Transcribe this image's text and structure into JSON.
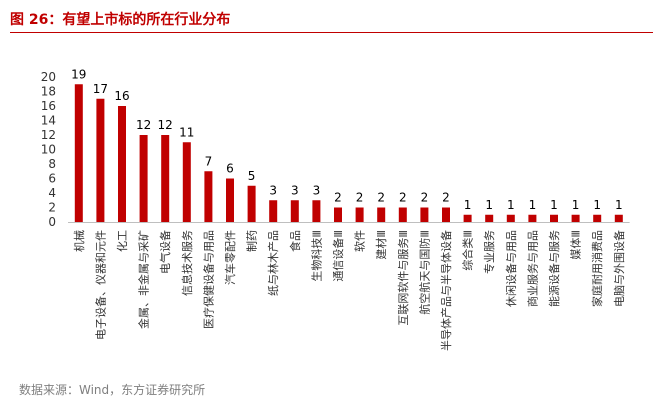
{
  "header": {
    "title": "图 26：有望上市标的所在行业分布"
  },
  "footer": {
    "source": "数据来源：Wind，东方证券研究所"
  },
  "colors": {
    "bar": "#c00000",
    "accent": "#c00000",
    "axis": "#bfbfbf"
  },
  "chart_data": {
    "type": "bar",
    "title": "",
    "xlabel": "",
    "ylabel": "",
    "ylim": [
      0,
      20
    ],
    "yticks": [
      0,
      2,
      4,
      6,
      8,
      10,
      12,
      14,
      16,
      18,
      20
    ],
    "grid": false,
    "legend": "none",
    "categories": [
      "机械",
      "电子设备、仪器和元件",
      "化工",
      "金属、非金属与采矿",
      "电气设备",
      "信息技术服务",
      "医疗保健设备与用品",
      "汽车零配件",
      "制药",
      "纸与林木产品",
      "食品",
      "生物科技Ⅲ",
      "通信设备Ⅲ",
      "软件",
      "建材Ⅲ",
      "互联网软件与服务Ⅲ",
      "航空航天与国防Ⅲ",
      "半导体产品与半导体设备",
      "综合类Ⅲ",
      "专业服务",
      "休闲设备与用品",
      "商业服务与用品",
      "能源设备与服务",
      "媒体Ⅲ",
      "家庭耐用消费品",
      "电脑与外围设备"
    ],
    "values": [
      19,
      17,
      16,
      12,
      12,
      11,
      7,
      6,
      5,
      3,
      3,
      3,
      2,
      2,
      2,
      2,
      2,
      2,
      1,
      1,
      1,
      1,
      1,
      1,
      1,
      1
    ]
  }
}
